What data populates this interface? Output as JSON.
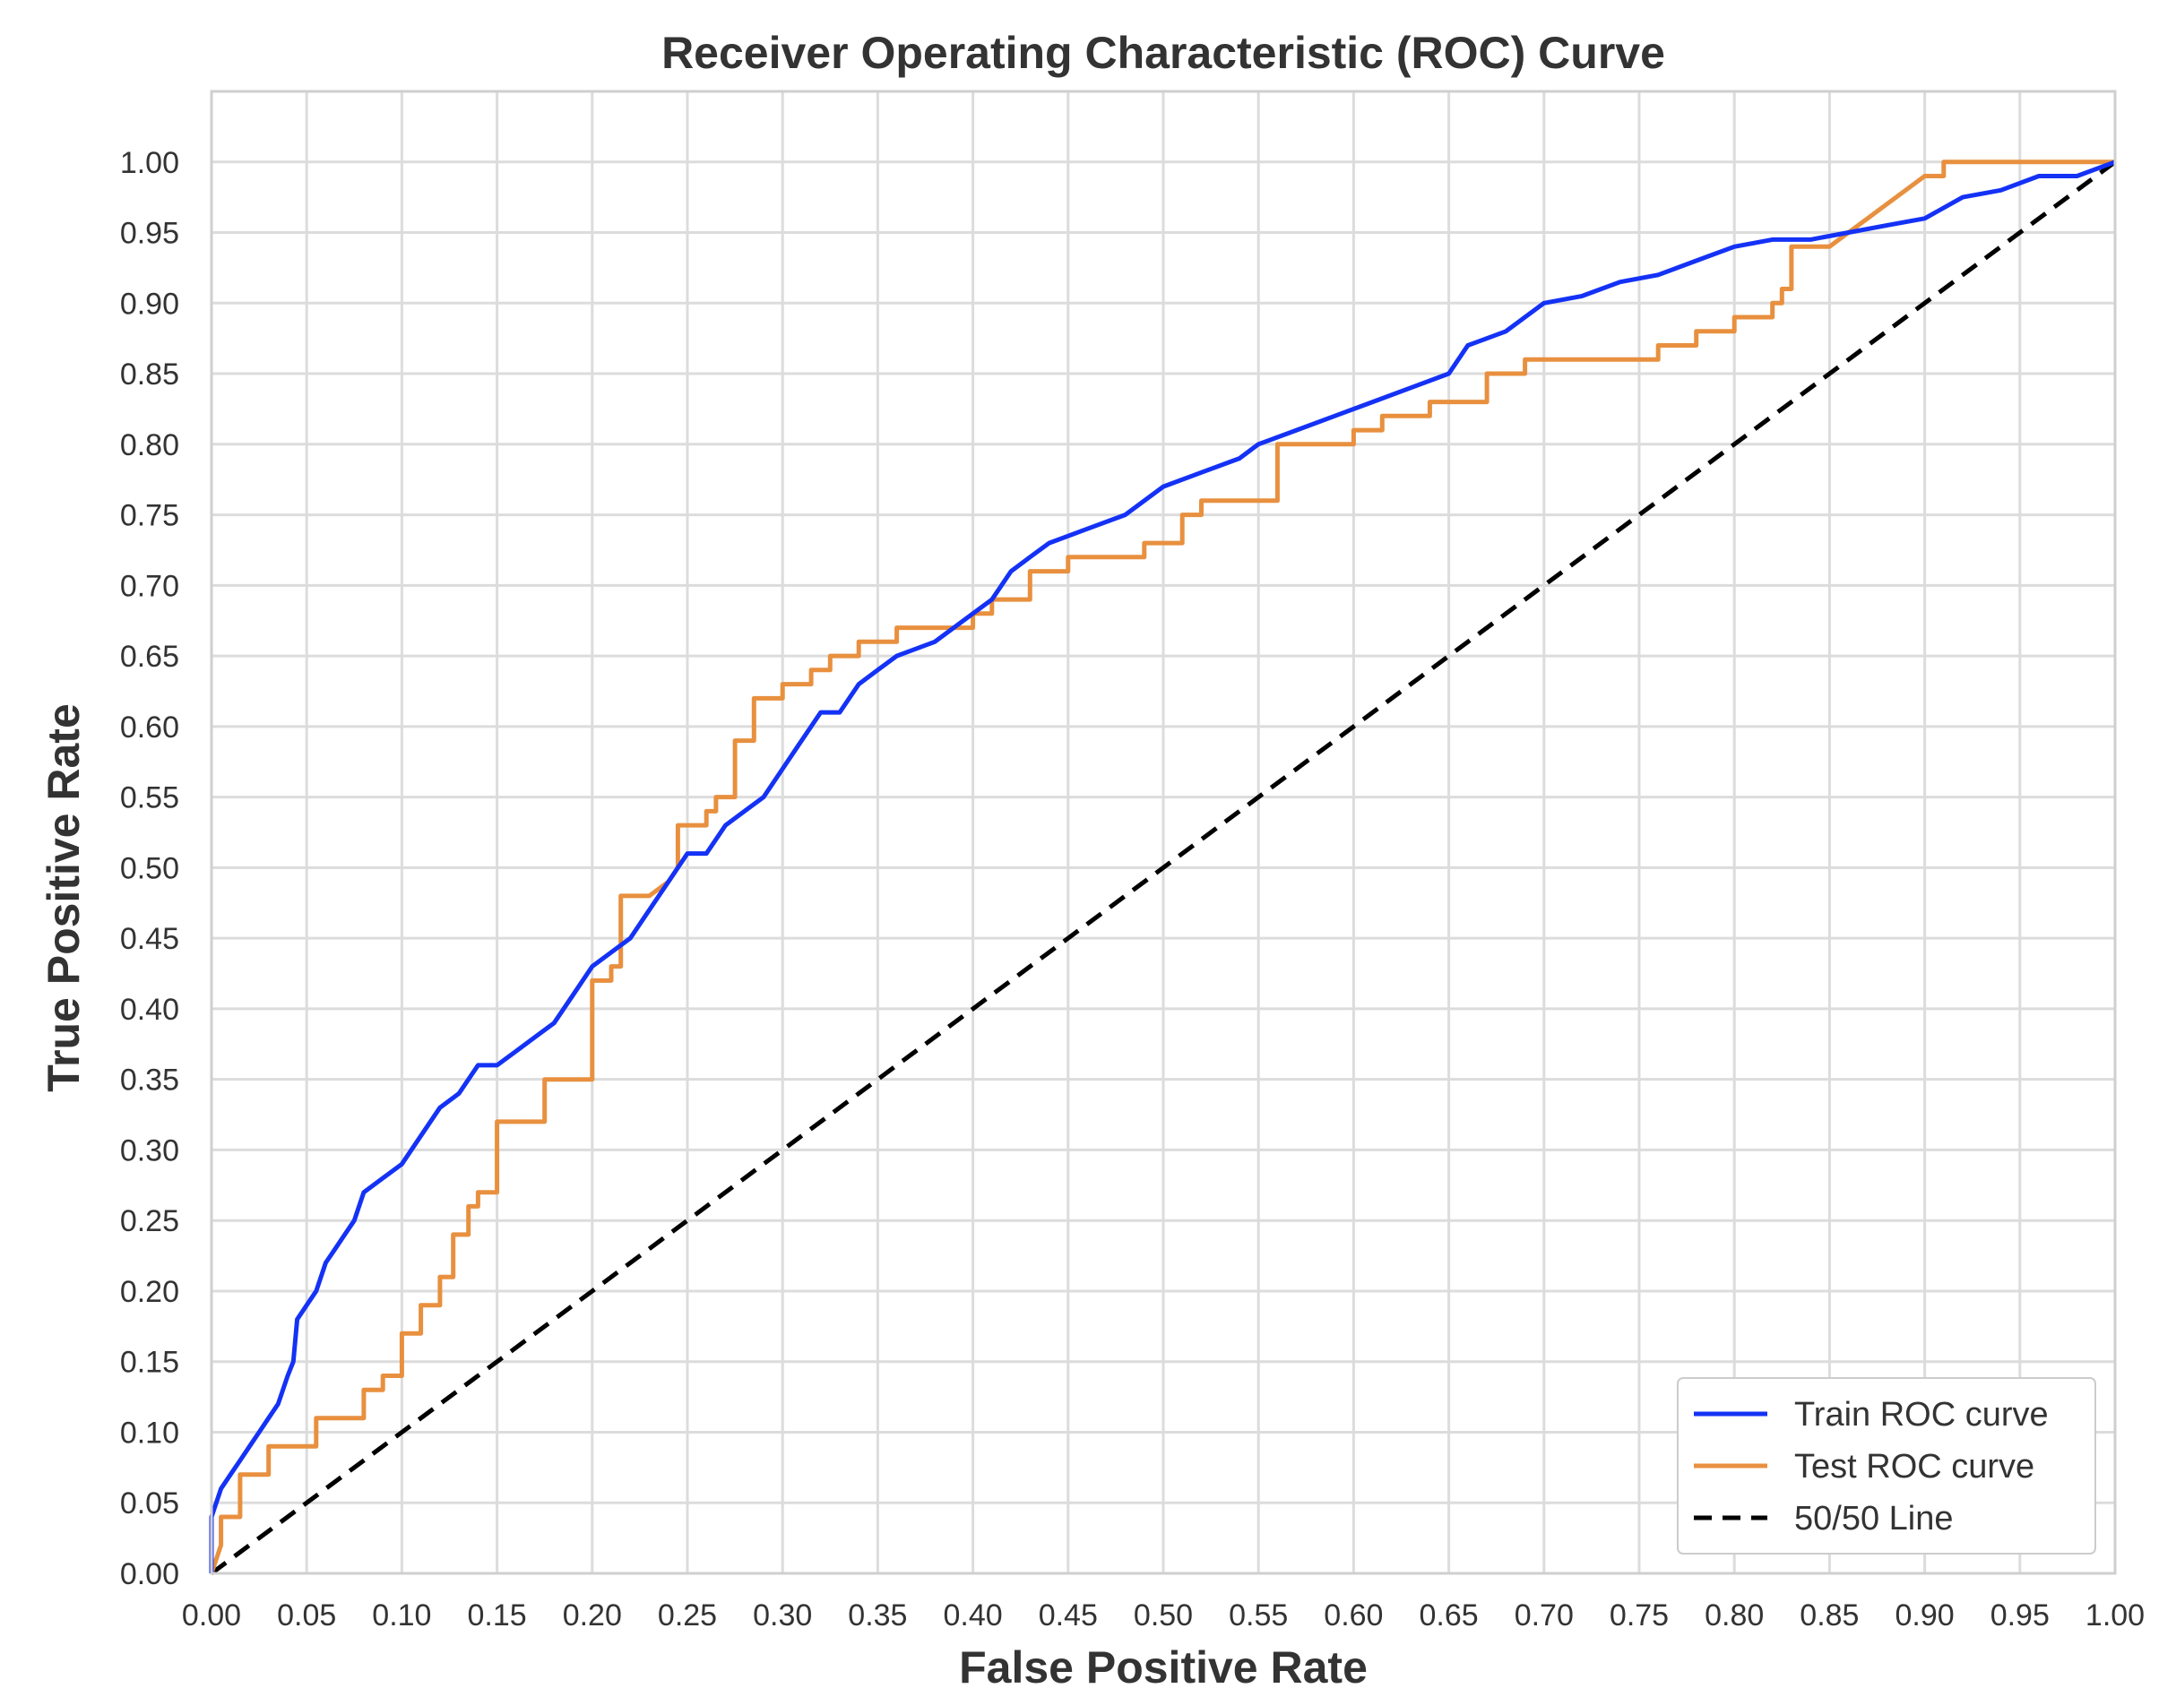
{
  "chart_data": {
    "type": "line",
    "title": "Receiver Operating Characteristic (ROC) Curve",
    "xlabel": "False Positive Rate",
    "ylabel": "True Positive Rate",
    "xlim": [
      0,
      1
    ],
    "ylim": [
      0,
      1.05
    ],
    "grid": true,
    "legend_position": "lower-right",
    "x_ticks": [
      "0.00",
      "0.05",
      "0.10",
      "0.15",
      "0.20",
      "0.25",
      "0.30",
      "0.35",
      "0.40",
      "0.45",
      "0.50",
      "0.55",
      "0.60",
      "0.65",
      "0.70",
      "0.75",
      "0.80",
      "0.85",
      "0.90",
      "0.95",
      "1.00"
    ],
    "y_ticks": [
      "0.00",
      "0.05",
      "0.10",
      "0.15",
      "0.20",
      "0.25",
      "0.30",
      "0.35",
      "0.40",
      "0.45",
      "0.50",
      "0.55",
      "0.60",
      "0.65",
      "0.70",
      "0.75",
      "0.80",
      "0.85",
      "0.90",
      "0.95",
      "1.00"
    ],
    "series": [
      {
        "name": "Train ROC curve",
        "color": "#1432f5",
        "style": "solid",
        "points": [
          [
            0,
            0
          ],
          [
            0,
            0.04
          ],
          [
            0.005,
            0.06
          ],
          [
            0.01,
            0.07
          ],
          [
            0.015,
            0.08
          ],
          [
            0.02,
            0.09
          ],
          [
            0.025,
            0.1
          ],
          [
            0.03,
            0.11
          ],
          [
            0.035,
            0.12
          ],
          [
            0.04,
            0.14
          ],
          [
            0.043,
            0.15
          ],
          [
            0.045,
            0.18
          ],
          [
            0.05,
            0.19
          ],
          [
            0.055,
            0.2
          ],
          [
            0.06,
            0.22
          ],
          [
            0.065,
            0.23
          ],
          [
            0.07,
            0.24
          ],
          [
            0.075,
            0.25
          ],
          [
            0.08,
            0.27
          ],
          [
            0.09,
            0.28
          ],
          [
            0.1,
            0.29
          ],
          [
            0.11,
            0.31
          ],
          [
            0.12,
            0.33
          ],
          [
            0.13,
            0.34
          ],
          [
            0.14,
            0.36
          ],
          [
            0.15,
            0.36
          ],
          [
            0.16,
            0.37
          ],
          [
            0.17,
            0.38
          ],
          [
            0.18,
            0.39
          ],
          [
            0.19,
            0.41
          ],
          [
            0.2,
            0.43
          ],
          [
            0.21,
            0.44
          ],
          [
            0.22,
            0.45
          ],
          [
            0.23,
            0.47
          ],
          [
            0.24,
            0.49
          ],
          [
            0.25,
            0.51
          ],
          [
            0.26,
            0.51
          ],
          [
            0.27,
            0.53
          ],
          [
            0.28,
            0.54
          ],
          [
            0.29,
            0.55
          ],
          [
            0.3,
            0.57
          ],
          [
            0.31,
            0.59
          ],
          [
            0.32,
            0.61
          ],
          [
            0.33,
            0.61
          ],
          [
            0.34,
            0.63
          ],
          [
            0.35,
            0.64
          ],
          [
            0.36,
            0.65
          ],
          [
            0.38,
            0.66
          ],
          [
            0.4,
            0.68
          ],
          [
            0.41,
            0.69
          ],
          [
            0.42,
            0.71
          ],
          [
            0.43,
            0.72
          ],
          [
            0.44,
            0.73
          ],
          [
            0.46,
            0.74
          ],
          [
            0.48,
            0.75
          ],
          [
            0.5,
            0.77
          ],
          [
            0.52,
            0.78
          ],
          [
            0.54,
            0.79
          ],
          [
            0.55,
            0.8
          ],
          [
            0.57,
            0.81
          ],
          [
            0.59,
            0.82
          ],
          [
            0.61,
            0.83
          ],
          [
            0.63,
            0.84
          ],
          [
            0.65,
            0.85
          ],
          [
            0.66,
            0.87
          ],
          [
            0.68,
            0.88
          ],
          [
            0.7,
            0.9
          ],
          [
            0.72,
            0.905
          ],
          [
            0.74,
            0.915
          ],
          [
            0.76,
            0.92
          ],
          [
            0.78,
            0.93
          ],
          [
            0.8,
            0.94
          ],
          [
            0.82,
            0.945
          ],
          [
            0.84,
            0.945
          ],
          [
            0.86,
            0.95
          ],
          [
            0.88,
            0.955
          ],
          [
            0.9,
            0.96
          ],
          [
            0.92,
            0.975
          ],
          [
            0.94,
            0.98
          ],
          [
            0.96,
            0.99
          ],
          [
            0.98,
            0.99
          ],
          [
            1.0,
            1.0
          ]
        ]
      },
      {
        "name": "Test ROC curve",
        "color": "#e8903f",
        "style": "solid",
        "points": [
          [
            0,
            0
          ],
          [
            0.005,
            0.02
          ],
          [
            0.005,
            0.04
          ],
          [
            0.015,
            0.04
          ],
          [
            0.015,
            0.07
          ],
          [
            0.03,
            0.07
          ],
          [
            0.03,
            0.09
          ],
          [
            0.055,
            0.09
          ],
          [
            0.055,
            0.11
          ],
          [
            0.08,
            0.11
          ],
          [
            0.08,
            0.13
          ],
          [
            0.09,
            0.13
          ],
          [
            0.09,
            0.14
          ],
          [
            0.1,
            0.14
          ],
          [
            0.1,
            0.17
          ],
          [
            0.11,
            0.17
          ],
          [
            0.11,
            0.19
          ],
          [
            0.12,
            0.19
          ],
          [
            0.12,
            0.21
          ],
          [
            0.127,
            0.21
          ],
          [
            0.127,
            0.24
          ],
          [
            0.135,
            0.24
          ],
          [
            0.135,
            0.26
          ],
          [
            0.14,
            0.26
          ],
          [
            0.14,
            0.27
          ],
          [
            0.15,
            0.27
          ],
          [
            0.15,
            0.32
          ],
          [
            0.175,
            0.32
          ],
          [
            0.175,
            0.35
          ],
          [
            0.2,
            0.35
          ],
          [
            0.2,
            0.42
          ],
          [
            0.21,
            0.42
          ],
          [
            0.21,
            0.43
          ],
          [
            0.215,
            0.43
          ],
          [
            0.215,
            0.48
          ],
          [
            0.23,
            0.48
          ],
          [
            0.24,
            0.49
          ],
          [
            0.245,
            0.5
          ],
          [
            0.245,
            0.53
          ],
          [
            0.26,
            0.53
          ],
          [
            0.26,
            0.54
          ],
          [
            0.265,
            0.54
          ],
          [
            0.265,
            0.55
          ],
          [
            0.275,
            0.55
          ],
          [
            0.275,
            0.59
          ],
          [
            0.285,
            0.59
          ],
          [
            0.285,
            0.62
          ],
          [
            0.3,
            0.62
          ],
          [
            0.3,
            0.63
          ],
          [
            0.315,
            0.63
          ],
          [
            0.315,
            0.64
          ],
          [
            0.325,
            0.64
          ],
          [
            0.325,
            0.65
          ],
          [
            0.34,
            0.65
          ],
          [
            0.34,
            0.66
          ],
          [
            0.36,
            0.66
          ],
          [
            0.36,
            0.67
          ],
          [
            0.4,
            0.67
          ],
          [
            0.4,
            0.68
          ],
          [
            0.41,
            0.68
          ],
          [
            0.41,
            0.69
          ],
          [
            0.43,
            0.69
          ],
          [
            0.43,
            0.71
          ],
          [
            0.45,
            0.71
          ],
          [
            0.45,
            0.72
          ],
          [
            0.49,
            0.72
          ],
          [
            0.49,
            0.73
          ],
          [
            0.51,
            0.73
          ],
          [
            0.51,
            0.75
          ],
          [
            0.52,
            0.75
          ],
          [
            0.52,
            0.76
          ],
          [
            0.56,
            0.76
          ],
          [
            0.56,
            0.8
          ],
          [
            0.6,
            0.8
          ],
          [
            0.6,
            0.81
          ],
          [
            0.615,
            0.81
          ],
          [
            0.615,
            0.82
          ],
          [
            0.64,
            0.82
          ],
          [
            0.64,
            0.83
          ],
          [
            0.67,
            0.83
          ],
          [
            0.67,
            0.85
          ],
          [
            0.69,
            0.85
          ],
          [
            0.69,
            0.86
          ],
          [
            0.76,
            0.86
          ],
          [
            0.76,
            0.87
          ],
          [
            0.78,
            0.87
          ],
          [
            0.78,
            0.88
          ],
          [
            0.8,
            0.88
          ],
          [
            0.8,
            0.89
          ],
          [
            0.82,
            0.89
          ],
          [
            0.82,
            0.9
          ],
          [
            0.825,
            0.9
          ],
          [
            0.825,
            0.91
          ],
          [
            0.83,
            0.91
          ],
          [
            0.83,
            0.94
          ],
          [
            0.85,
            0.94
          ],
          [
            0.86,
            0.95
          ],
          [
            0.87,
            0.96
          ],
          [
            0.88,
            0.97
          ],
          [
            0.89,
            0.98
          ],
          [
            0.9,
            0.99
          ],
          [
            0.91,
            0.99
          ],
          [
            0.91,
            1.0
          ],
          [
            1.0,
            1.0
          ]
        ]
      },
      {
        "name": "50/50 Line",
        "color": "#000000",
        "style": "dashed",
        "points": [
          [
            0,
            0
          ],
          [
            1,
            1
          ]
        ]
      }
    ]
  }
}
